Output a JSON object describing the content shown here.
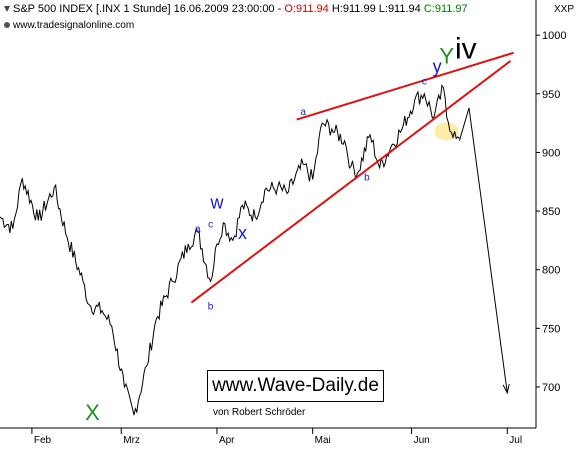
{
  "header": {
    "instrument": "S&P 500 INDEX [.INX  1 Stunde]",
    "datetime": "16.06.2009 23:00:00",
    "open_label": "O:",
    "open": "911.94",
    "high_label": "H:",
    "high": "911.99",
    "low_label": "L:",
    "low": "911.94",
    "close_label": "C:",
    "close": "911.97",
    "right_label": "XXP"
  },
  "watermark": "www.tradesignalonline.com",
  "brand": "www.Wave-Daily.de",
  "author": "von Robert Schröder",
  "colors": {
    "price": "#000000",
    "trendline": "#e01010",
    "wave_blue": "#1a1acc",
    "wave_green": "#1f8f1f",
    "highlight": "#ffe58a"
  },
  "chart_data": {
    "type": "line",
    "price_scale": "right",
    "ylim": [
      665,
      1030
    ],
    "yticks": [
      700,
      750,
      800,
      850,
      900,
      950,
      1000
    ],
    "xticks": [
      "Feb",
      "Mrz",
      "Apr",
      "Mai",
      "Jun",
      "Jul"
    ],
    "xtick_dates": [
      "2009-02-02",
      "2009-03-02",
      "2009-04-01",
      "2009-05-01",
      "2009-06-01",
      "2009-07-01"
    ],
    "xlim": [
      "2009-01-23",
      "2009-07-10"
    ],
    "series": [
      {
        "x": [
          "2009-01-23",
          "2009-01-27",
          "2009-01-30",
          "2009-02-04",
          "2009-02-09",
          "2009-02-13",
          "2009-02-18",
          "2009-02-20",
          "2009-02-24",
          "2009-02-27",
          "2009-03-03",
          "2009-03-06",
          "2009-03-10",
          "2009-03-13",
          "2009-03-18",
          "2009-03-23",
          "2009-03-26",
          "2009-03-30",
          "2009-04-01",
          "2009-04-03",
          "2009-04-06",
          "2009-04-09",
          "2009-04-13",
          "2009-04-16",
          "2009-04-20",
          "2009-04-23",
          "2009-04-28",
          "2009-05-01",
          "2009-05-04",
          "2009-05-07",
          "2009-05-11",
          "2009-05-13",
          "2009-05-15",
          "2009-05-19",
          "2009-05-22",
          "2009-05-26",
          "2009-05-29",
          "2009-06-02",
          "2009-06-05",
          "2009-06-08",
          "2009-06-11",
          "2009-06-12",
          "2009-06-15",
          "2009-06-16"
        ],
        "y": [
          845,
          835,
          878,
          842,
          870,
          828,
          790,
          770,
          765,
          752,
          700,
          676,
          718,
          758,
          790,
          822,
          832,
          790,
          822,
          840,
          825,
          855,
          845,
          868,
          870,
          865,
          890,
          877,
          925,
          920,
          910,
          888,
          882,
          915,
          887,
          907,
          920,
          945,
          950,
          930,
          955,
          930,
          912,
          912
        ]
      }
    ],
    "trendlines": [
      {
        "name": "upper",
        "x": [
          "2009-04-26",
          "2009-07-03"
        ],
        "y": [
          928,
          985
        ]
      },
      {
        "name": "lower",
        "x": [
          "2009-03-24",
          "2009-07-02"
        ],
        "y": [
          772,
          978
        ]
      }
    ],
    "projection": {
      "x": [
        "2009-06-16",
        "2009-06-19",
        "2009-07-01"
      ],
      "y": [
        910,
        938,
        695
      ]
    },
    "annotations": [
      {
        "text": "X",
        "x": "2009-02-21",
        "y": 672,
        "size": "large",
        "color": "green"
      },
      {
        "text": "w",
        "x": "2009-04-01",
        "y": 852,
        "size": "medium",
        "color": "blue"
      },
      {
        "text": "x",
        "x": "2009-04-09",
        "y": 826,
        "size": "medium",
        "color": "blue"
      },
      {
        "text": "a",
        "x": "2009-03-26",
        "y": 832,
        "size": "small",
        "color": "blue"
      },
      {
        "text": "b",
        "x": "2009-03-30",
        "y": 766,
        "size": "small",
        "color": "blue"
      },
      {
        "text": "c",
        "x": "2009-03-30",
        "y": 836,
        "size": "small",
        "color": "blue"
      },
      {
        "text": "a",
        "x": "2009-04-28",
        "y": 932,
        "size": "small",
        "color": "blue"
      },
      {
        "text": "b",
        "x": "2009-05-18",
        "y": 876,
        "size": "small",
        "color": "blue"
      },
      {
        "text": "c",
        "x": "2009-06-05",
        "y": 958,
        "size": "small",
        "color": "blue"
      },
      {
        "text": "y",
        "x": "2009-06-09",
        "y": 968,
        "size": "medium",
        "color": "blue"
      },
      {
        "text": "Y",
        "x": "2009-06-12",
        "y": 976,
        "size": "large",
        "color": "green"
      },
      {
        "text": "iv",
        "x": "2009-06-18",
        "y": 980,
        "size": "xlarge",
        "color": "black"
      }
    ]
  }
}
